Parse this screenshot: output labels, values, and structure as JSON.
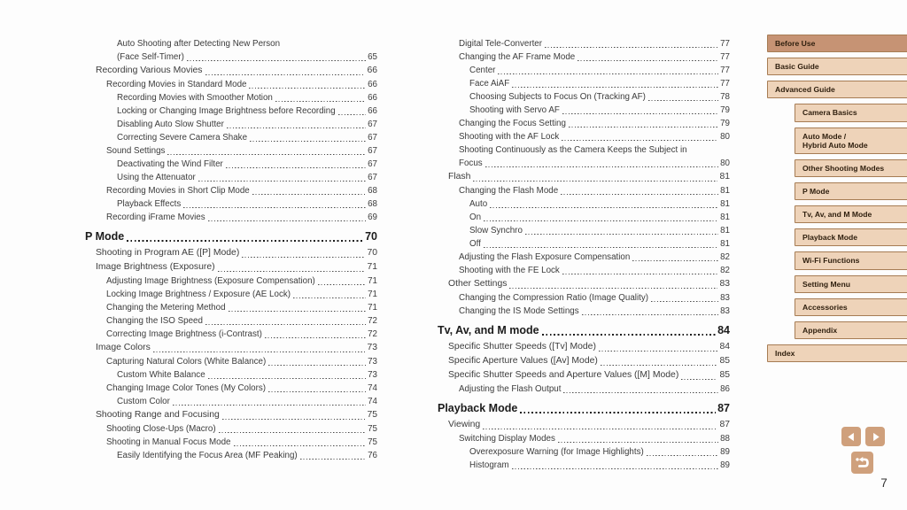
{
  "page": {
    "number": "7"
  },
  "toc": {
    "columns": [
      {
        "entries": [
          {
            "t": "Auto Shooting after Detecting New Person",
            "p": "",
            "lv": 3
          },
          {
            "t": "(Face Self-Timer)",
            "p": "65",
            "lv": 3
          },
          {
            "t": "Recording Various Movies",
            "p": "66",
            "lv": 1
          },
          {
            "t": "Recording Movies in Standard Mode",
            "p": "66",
            "lv": 2
          },
          {
            "t": "Recording Movies with Smoother Motion",
            "p": "66",
            "lv": 3
          },
          {
            "t": "Locking or Changing Image Brightness before Recording",
            "p": "66",
            "lv": 3
          },
          {
            "t": "Disabling Auto Slow Shutter",
            "p": "67",
            "lv": 3
          },
          {
            "t": "Correcting Severe Camera Shake",
            "p": "67",
            "lv": 3
          },
          {
            "t": "Sound Settings",
            "p": "67",
            "lv": 2
          },
          {
            "t": "Deactivating the Wind Filter",
            "p": "67",
            "lv": 3
          },
          {
            "t": "Using the Attenuator",
            "p": "67",
            "lv": 3
          },
          {
            "t": "Recording Movies in Short Clip Mode",
            "p": "68",
            "lv": 2
          },
          {
            "t": "Playback Effects",
            "p": "68",
            "lv": 3
          },
          {
            "t": "Recording iFrame Movies",
            "p": "69",
            "lv": 2
          },
          {
            "t": "P Mode",
            "p": "70",
            "lv": 0
          },
          {
            "t": "Shooting in Program AE ([P] Mode)",
            "p": "70",
            "lv": 1
          },
          {
            "t": "Image Brightness (Exposure)",
            "p": "71",
            "lv": 1
          },
          {
            "t": "Adjusting Image Brightness (Exposure Compensation)",
            "p": "71",
            "lv": 2
          },
          {
            "t": "Locking Image Brightness / Exposure (AE Lock)",
            "p": "71",
            "lv": 2
          },
          {
            "t": "Changing the Metering Method",
            "p": "71",
            "lv": 2
          },
          {
            "t": "Changing the ISO Speed",
            "p": "72",
            "lv": 2
          },
          {
            "t": "Correcting Image Brightness (i-Contrast)",
            "p": "72",
            "lv": 2
          },
          {
            "t": "Image Colors",
            "p": "73",
            "lv": 1
          },
          {
            "t": "Capturing Natural Colors (White Balance)",
            "p": "73",
            "lv": 2
          },
          {
            "t": "Custom White Balance",
            "p": "73",
            "lv": 3
          },
          {
            "t": "Changing Image Color Tones (My Colors)",
            "p": "74",
            "lv": 2
          },
          {
            "t": "Custom Color",
            "p": "74",
            "lv": 3
          },
          {
            "t": "Shooting Range and Focusing",
            "p": "75",
            "lv": 1
          },
          {
            "t": "Shooting Close-Ups (Macro)",
            "p": "75",
            "lv": 2
          },
          {
            "t": "Shooting in Manual Focus Mode",
            "p": "75",
            "lv": 2
          },
          {
            "t": "Easily Identifying the Focus Area (MF Peaking)",
            "p": "76",
            "lv": 3
          }
        ]
      },
      {
        "entries": [
          {
            "t": "Digital Tele-Converter",
            "p": "77",
            "lv": 2
          },
          {
            "t": "Changing the AF Frame Mode",
            "p": "77",
            "lv": 2
          },
          {
            "t": "Center",
            "p": "77",
            "lv": 3
          },
          {
            "t": "Face AiAF",
            "p": "77",
            "lv": 3
          },
          {
            "t": "Choosing Subjects to Focus On (Tracking AF)",
            "p": "78",
            "lv": 3
          },
          {
            "t": "Shooting with Servo AF",
            "p": "79",
            "lv": 3
          },
          {
            "t": "Changing the Focus Setting",
            "p": "79",
            "lv": 2
          },
          {
            "t": "Shooting with the AF Lock",
            "p": "80",
            "lv": 2
          },
          {
            "t": "Shooting Continuously as the Camera Keeps the Subject in",
            "p": "",
            "lv": 2
          },
          {
            "t": "Focus",
            "p": "80",
            "lv": 2
          },
          {
            "t": "Flash",
            "p": "81",
            "lv": 1
          },
          {
            "t": "Changing the Flash Mode",
            "p": "81",
            "lv": 2
          },
          {
            "t": "Auto",
            "p": "81",
            "lv": 3
          },
          {
            "t": "On",
            "p": "81",
            "lv": 3
          },
          {
            "t": "Slow Synchro",
            "p": "81",
            "lv": 3
          },
          {
            "t": "Off",
            "p": "81",
            "lv": 3
          },
          {
            "t": "Adjusting the Flash Exposure Compensation",
            "p": "82",
            "lv": 2
          },
          {
            "t": "Shooting with the FE Lock",
            "p": "82",
            "lv": 2
          },
          {
            "t": "Other Settings",
            "p": "83",
            "lv": 1
          },
          {
            "t": "Changing the Compression Ratio (Image Quality)",
            "p": "83",
            "lv": 2
          },
          {
            "t": "Changing the IS Mode Settings",
            "p": "83",
            "lv": 2
          },
          {
            "t": "Tv, Av, and M mode",
            "p": "84",
            "lv": 0
          },
          {
            "t": "Specific Shutter Speeds ([Tv] Mode)",
            "p": "84",
            "lv": 1
          },
          {
            "t": "Specific Aperture Values ([Av] Mode)",
            "p": "85",
            "lv": 1
          },
          {
            "t": "Specific Shutter Speeds and Aperture Values ([M] Mode)",
            "p": "85",
            "lv": 1
          },
          {
            "t": "Adjusting the Flash Output",
            "p": "86",
            "lv": 2
          },
          {
            "t": "Playback Mode",
            "p": "87",
            "lv": 0
          },
          {
            "t": "Viewing",
            "p": "87",
            "lv": 1
          },
          {
            "t": "Switching Display Modes",
            "p": "88",
            "lv": 2
          },
          {
            "t": "Overexposure Warning (for Image Highlights)",
            "p": "89",
            "lv": 3
          },
          {
            "t": "Histogram",
            "p": "89",
            "lv": 3
          }
        ]
      }
    ]
  },
  "sidebar": {
    "items": [
      {
        "label": "Before Use",
        "level": 0,
        "active": true
      },
      {
        "label": "Basic Guide",
        "level": 0
      },
      {
        "label": "Advanced Guide",
        "level": 0
      },
      {
        "label": "Camera Basics",
        "level": 1
      },
      {
        "label": "Auto Mode /\nHybrid Auto Mode",
        "level": 1
      },
      {
        "label": "Other Shooting Modes",
        "level": 1
      },
      {
        "label": "P Mode",
        "level": 1
      },
      {
        "label": "Tv, Av, and M Mode",
        "level": 1
      },
      {
        "label": "Playback Mode",
        "level": 1
      },
      {
        "label": "Wi-Fi Functions",
        "level": 1
      },
      {
        "label": "Setting Menu",
        "level": 1
      },
      {
        "label": "Accessories",
        "level": 1
      },
      {
        "label": "Appendix",
        "level": 1
      },
      {
        "label": "Index",
        "level": 0
      }
    ]
  },
  "nav": {
    "prev_icon": "left-arrow",
    "next_icon": "right-arrow",
    "return_icon": "return-arrow"
  },
  "colors": {
    "sidebar_active_bg": "#c69374",
    "sidebar_bg": "#eed3b9",
    "sidebar_border": "#a67c54",
    "nav_button_bg": "#cfa07c",
    "text_color": "#3c3c3c",
    "heading_color": "#1c1c1c",
    "dot_color": "#4a4a4a"
  }
}
